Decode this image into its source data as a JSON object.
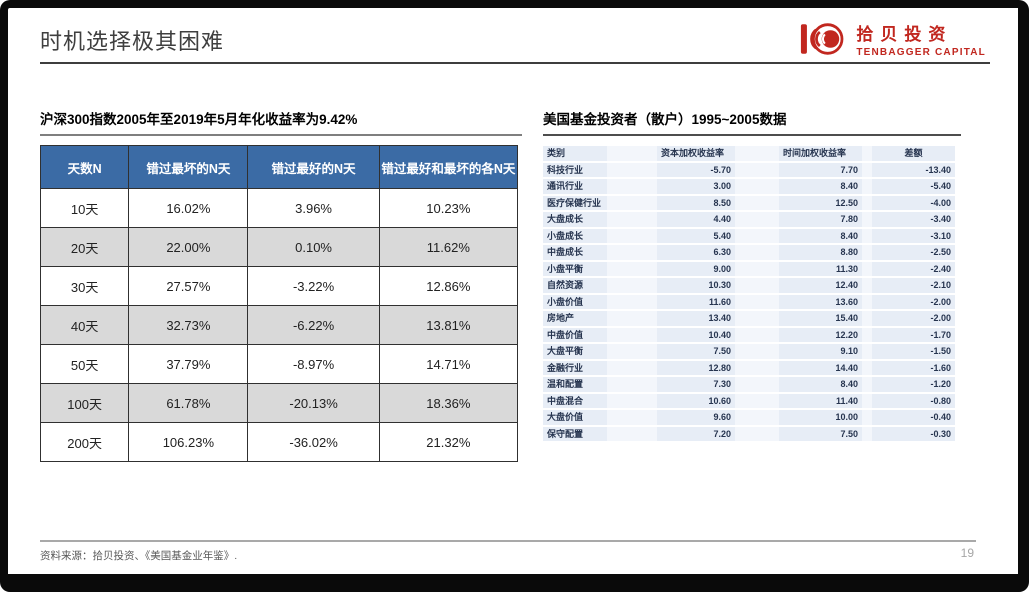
{
  "page": {
    "title": "时机选择极其困难",
    "source": "资料来源：拾贝投资、《美国基金业年鉴》.",
    "page_number": "19"
  },
  "logo": {
    "cn": "拾贝投资",
    "en": "TENBAGGER CAPITAL"
  },
  "accents": {
    "logo_red": "#c1271f",
    "table_header_blue": "#3b6ba5",
    "stripe_gray": "#d9d9d9",
    "light_blue_cell": "#e7edf6"
  },
  "left_table": {
    "title": "沪深300指数2005年至2019年5月年化收益率为9.42%",
    "headers": [
      "天数N",
      "错过最坏的N天",
      "错过最好的N天",
      "错过最好和最坏的各N天"
    ],
    "rows": [
      [
        "10天",
        "16.02%",
        "3.96%",
        "10.23%"
      ],
      [
        "20天",
        "22.00%",
        "0.10%",
        "11.62%"
      ],
      [
        "30天",
        "27.57%",
        "-3.22%",
        "12.86%"
      ],
      [
        "40天",
        "32.73%",
        "-6.22%",
        "13.81%"
      ],
      [
        "50天",
        "37.79%",
        "-8.97%",
        "14.71%"
      ],
      [
        "100天",
        "61.78%",
        "-20.13%",
        "18.36%"
      ],
      [
        "200天",
        "106.23%",
        "-36.02%",
        "21.32%"
      ]
    ]
  },
  "right_table": {
    "title": "美国基金投资者（散户）1995~2005数据",
    "headers": [
      "类别",
      "资本加权收益率",
      "时间加权收益率",
      "差额"
    ],
    "rows": [
      [
        "科技行业",
        "-5.70",
        "7.70",
        "-13.40"
      ],
      [
        "通讯行业",
        "3.00",
        "8.40",
        "-5.40"
      ],
      [
        "医疗保健行业",
        "8.50",
        "12.50",
        "-4.00"
      ],
      [
        "大盘成长",
        "4.40",
        "7.80",
        "-3.40"
      ],
      [
        "小盘成长",
        "5.40",
        "8.40",
        "-3.10"
      ],
      [
        "中盘成长",
        "6.30",
        "8.80",
        "-2.50"
      ],
      [
        "小盘平衡",
        "9.00",
        "11.30",
        "-2.40"
      ],
      [
        "自然资源",
        "10.30",
        "12.40",
        "-2.10"
      ],
      [
        "小盘价值",
        "11.60",
        "13.60",
        "-2.00"
      ],
      [
        "房地产",
        "13.40",
        "15.40",
        "-2.00"
      ],
      [
        "中盘价值",
        "10.40",
        "12.20",
        "-1.70"
      ],
      [
        "大盘平衡",
        "7.50",
        "9.10",
        "-1.50"
      ],
      [
        "金融行业",
        "12.80",
        "14.40",
        "-1.60"
      ],
      [
        "温和配置",
        "7.30",
        "8.40",
        "-1.20"
      ],
      [
        "中盘混合",
        "10.60",
        "11.40",
        "-0.80"
      ],
      [
        "大盘价值",
        "9.60",
        "10.00",
        "-0.40"
      ],
      [
        "保守配置",
        "7.20",
        "7.50",
        "-0.30"
      ]
    ]
  }
}
